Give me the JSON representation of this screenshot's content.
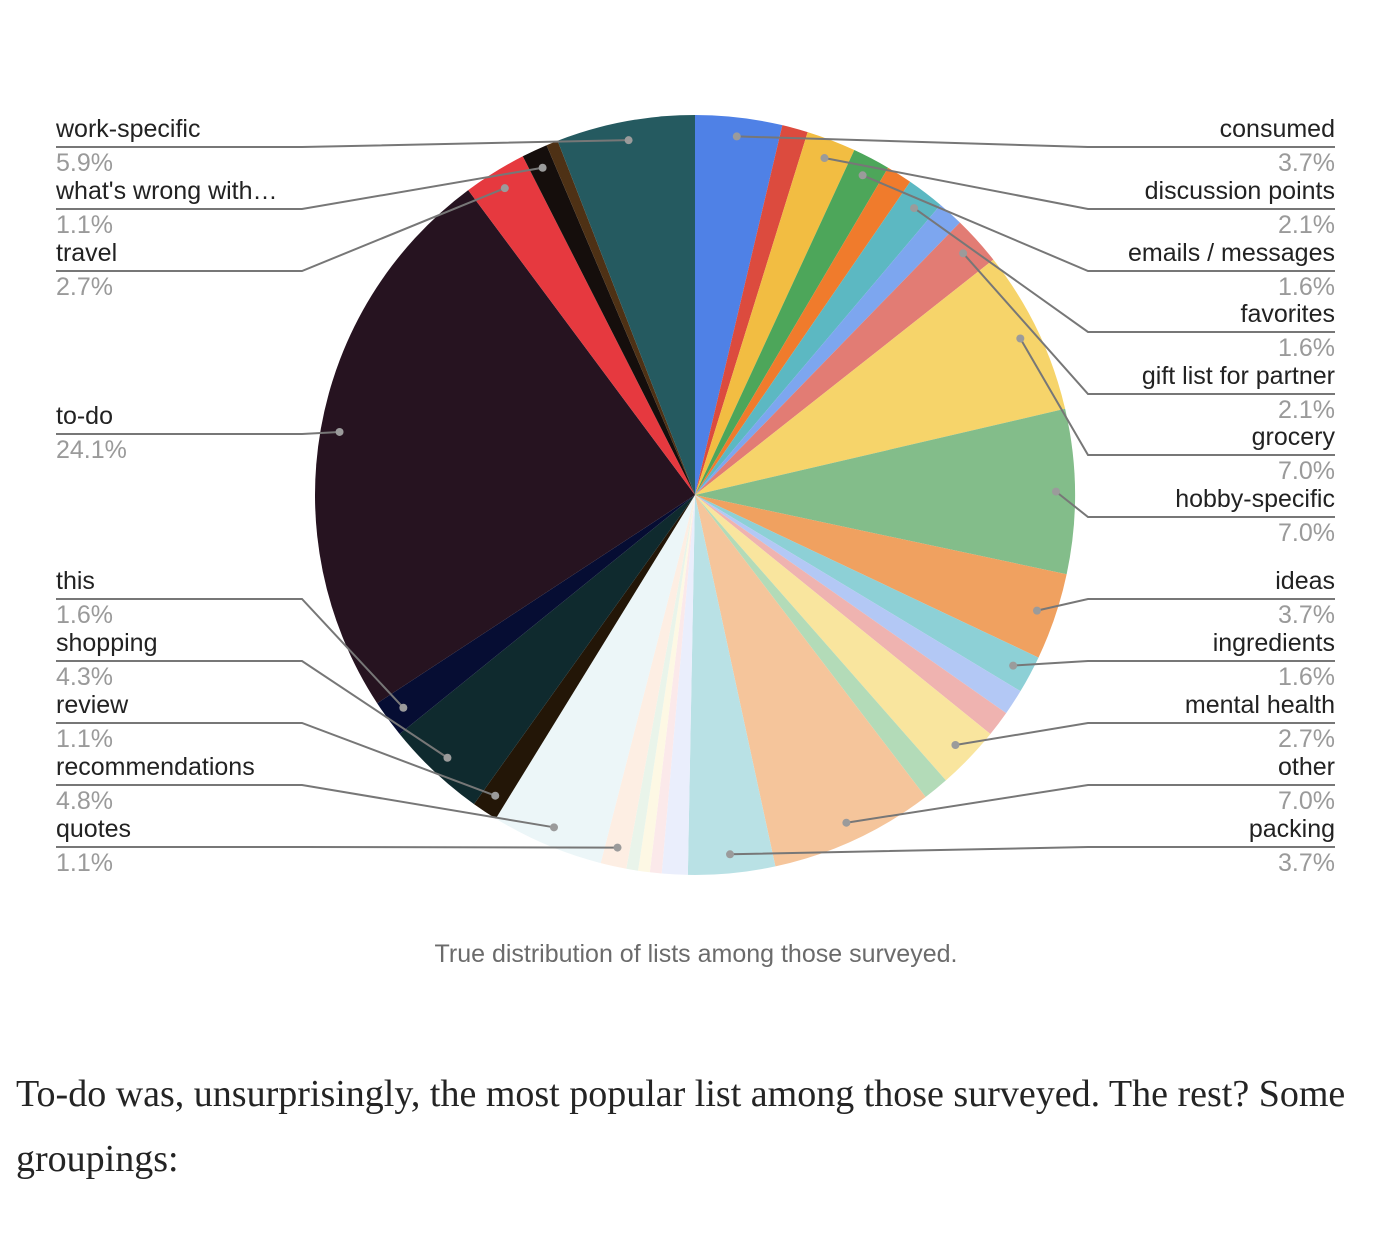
{
  "chart_data": {
    "type": "pie",
    "title": "",
    "start": "12 o'clock, clockwise",
    "slices": [
      {
        "label": "consumed",
        "value": 3.7,
        "display": "3.7%",
        "color": "#4f81e6"
      },
      {
        "value": 1.1,
        "color": "#dc4b3e"
      },
      {
        "label": "discussion points",
        "value": 2.1,
        "display": "2.1%",
        "color": "#f2bd42"
      },
      {
        "label": "emails / messages",
        "value": 1.6,
        "display": "1.6%",
        "color": "#4da65a"
      },
      {
        "value": 1.1,
        "color": "#f07b2c"
      },
      {
        "label": "favorites",
        "value": 1.6,
        "display": "1.6%",
        "color": "#5cb8c2"
      },
      {
        "value": 1.1,
        "color": "#7da6ef"
      },
      {
        "label": "gift list for partner",
        "value": 2.1,
        "display": "2.1%",
        "color": "#e27c74"
      },
      {
        "label": "grocery",
        "value": 7.0,
        "display": "7.0%",
        "color": "#f6d46a"
      },
      {
        "label": "hobby-specific",
        "value": 7.0,
        "display": "7.0%",
        "color": "#83bd8a"
      },
      {
        "label": "ideas",
        "value": 3.7,
        "display": "3.7%",
        "color": "#f0a160"
      },
      {
        "label": "ingredients",
        "value": 1.6,
        "display": "1.6%",
        "color": "#8dd0d6"
      },
      {
        "value": 1.1,
        "color": "#b3c8f5"
      },
      {
        "value": 1.1,
        "color": "#efb3b0"
      },
      {
        "label": "mental health",
        "value": 2.7,
        "display": "2.7%",
        "color": "#f9e59e"
      },
      {
        "value": 1.1,
        "color": "#b3dbb8"
      },
      {
        "label": "other",
        "value": 7.0,
        "display": "7.0%",
        "color": "#f5c59b"
      },
      {
        "label": "packing",
        "value": 3.7,
        "display": "3.7%",
        "color": "#b9e1e5"
      },
      {
        "value": 1.1,
        "color": "#eaeefc"
      },
      {
        "value": 0.5,
        "color": "#fbe9ea"
      },
      {
        "value": 0.5,
        "color": "#fdf8e4"
      },
      {
        "value": 0.5,
        "color": "#e9f4ea"
      },
      {
        "label": "quotes",
        "value": 1.1,
        "display": "1.1%",
        "color": "#fdeee3"
      },
      {
        "label": "recommendations",
        "value": 4.8,
        "display": "4.8%",
        "color": "#ecf6f8"
      },
      {
        "label": "review",
        "value": 1.1,
        "display": "1.1%",
        "color": "#231607"
      },
      {
        "label": "shopping",
        "value": 4.3,
        "display": "4.3%",
        "color": "#0f2a2e"
      },
      {
        "label": "this",
        "value": 1.6,
        "display": "1.6%",
        "color": "#060d33"
      },
      {
        "label": "to-do",
        "value": 24.1,
        "display": "24.1%",
        "color": "#261320"
      },
      {
        "label": "travel",
        "value": 2.7,
        "display": "2.7%",
        "color": "#e6393f"
      },
      {
        "label": "what's wrong with…",
        "value": 1.1,
        "display": "1.1%",
        "color": "#150e0c"
      },
      {
        "value": 0.5,
        "color": "#4e3115"
      },
      {
        "label": "work-specific",
        "value": 5.9,
        "display": "5.9%",
        "color": "#255a60"
      }
    ],
    "legend": "leader-line labels left and right"
  },
  "caption": "True distribution of lists among those surveyed.",
  "paragraph": "To-do was, unsurprisingly, the most popular list among those surveyed. The rest? Some groupings:"
}
